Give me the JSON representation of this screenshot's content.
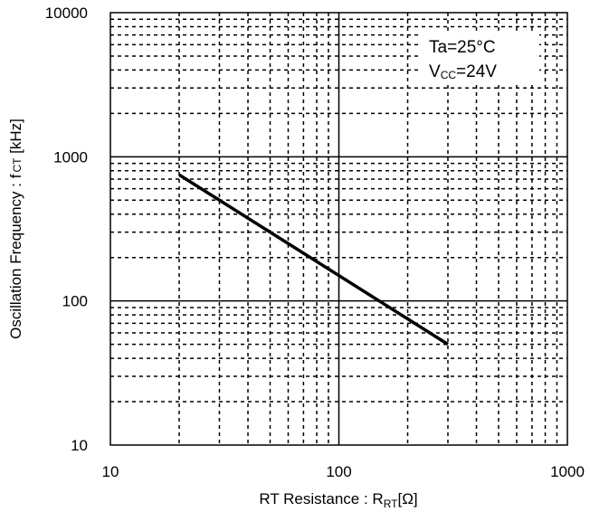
{
  "chart_data": {
    "type": "line",
    "x_scale": "log",
    "y_scale": "log",
    "xlim": [
      10,
      1000
    ],
    "ylim": [
      10,
      10000
    ],
    "x_ticks": [
      10,
      100,
      1000
    ],
    "x_tick_labels": [
      "10",
      "100",
      "1000"
    ],
    "y_ticks": [
      10,
      100,
      1000,
      10000
    ],
    "y_tick_labels": [
      "10",
      "100",
      "1000",
      "10000"
    ],
    "xlabel": {
      "main": "RT Resistance : R",
      "sub": "RT",
      "unit": "[Ω]"
    },
    "ylabel": {
      "main": "Oscillation Frequency : f",
      "sub": "CT",
      "unit": " [kHz]"
    },
    "grid": {
      "major": "solid",
      "minor": "dashed"
    },
    "series": [
      {
        "x": [
          20,
          300
        ],
        "y": [
          750,
          50
        ]
      }
    ],
    "annotations": [
      {
        "main": "Ta=25°C"
      },
      {
        "main": "V",
        "sub": "CC",
        "rest": "=24V"
      }
    ]
  }
}
